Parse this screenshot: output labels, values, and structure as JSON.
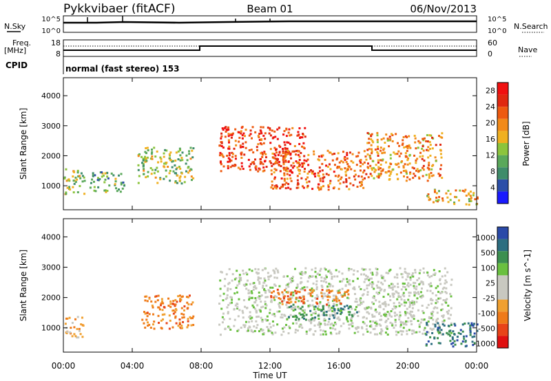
{
  "header": {
    "site": "Pykkvibaer (fitACF)",
    "beam": "Beam 01",
    "date": "06/Nov/2013"
  },
  "labels": {
    "nsky": "N.Sky",
    "nsearch": "N.Search",
    "freq_line1": "Freq.",
    "freq_line2": "[MHz]",
    "nave": "Nave",
    "cpid": "CPID",
    "cpid_value": "normal (fast stereo) 153"
  },
  "top_axes": {
    "noise_left_ticks": [
      "10^5",
      "10^0"
    ],
    "noise_right_ticks": [
      "10^5",
      "10^0"
    ],
    "freq_left_ticks": [
      "18",
      "8"
    ],
    "nave_right_ticks": [
      "60",
      "0"
    ]
  },
  "colors": {
    "power": [
      "#1a1aff",
      "#2c4fa8",
      "#3f8c6a",
      "#5aa85a",
      "#8cc43c",
      "#f0b020",
      "#f28a18",
      "#ee5a10",
      "#e02810",
      "#f01010"
    ],
    "velocity": [
      "#2a4aa8",
      "#2d6e80",
      "#3c8f50",
      "#6ac040",
      "#c8c8c0",
      "#c8c8c0",
      "#f0a030",
      "#ef7a18",
      "#e84418",
      "#e01010"
    ]
  },
  "chart_data": [
    {
      "type": "heatmap",
      "title": "Power",
      "ylabel": "Slant Range [km]",
      "ylim": [
        200,
        4600
      ],
      "y_ticks": [
        1000,
        2000,
        3000,
        4000
      ],
      "colorbar_label": "Power [dB]",
      "colorbar_ticks": [
        "4",
        "8",
        "12",
        "16",
        "20",
        "24",
        "28"
      ],
      "colorbar_range": [
        0,
        30
      ],
      "regions": [
        {
          "t0": 0.0,
          "t1": 1.2,
          "r0": 700,
          "r1": 1600,
          "value": 12
        },
        {
          "t0": 1.5,
          "t1": 3.5,
          "r0": 800,
          "r1": 1500,
          "value": 10
        },
        {
          "t0": 4.3,
          "t1": 7.5,
          "r0": 1100,
          "r1": 2300,
          "value": 14
        },
        {
          "t0": 9.0,
          "t1": 14.0,
          "r0": 1500,
          "r1": 3000,
          "value": 26
        },
        {
          "t0": 12.0,
          "t1": 17.5,
          "r0": 900,
          "r1": 2200,
          "value": 24
        },
        {
          "t0": 17.5,
          "t1": 22.0,
          "r0": 1200,
          "r1": 2800,
          "value": 20
        },
        {
          "t0": 21.0,
          "t1": 24.0,
          "r0": 400,
          "r1": 900,
          "value": 18
        }
      ]
    },
    {
      "type": "heatmap",
      "title": "Velocity",
      "ylabel": "Slant Range [km]",
      "xlabel": "Time UT",
      "ylim": [
        200,
        4600
      ],
      "y_ticks": [
        1000,
        2000,
        3000,
        4000
      ],
      "x_ticks": [
        "00:00",
        "04:00",
        "08:00",
        "12:00",
        "16:00",
        "20:00",
        "00:00"
      ],
      "colorbar_label": "Velocity [m s^-1]",
      "colorbar_ticks": [
        "1000",
        "500",
        "100",
        "25",
        "-25",
        "-100",
        "-500",
        "-1000"
      ],
      "regions": [
        {
          "t0": 0.0,
          "t1": 1.2,
          "r0": 700,
          "r1": 1400,
          "value": "-100"
        },
        {
          "t0": 4.5,
          "t1": 7.5,
          "r0": 1000,
          "r1": 2100,
          "value": "-500"
        },
        {
          "t0": 9.0,
          "t1": 22.5,
          "r0": 800,
          "r1": 3000,
          "value": "25"
        },
        {
          "t0": 12.0,
          "t1": 16.5,
          "r0": 1800,
          "r1": 2300,
          "value": "-500"
        },
        {
          "t0": 13.0,
          "t1": 17.0,
          "r0": 1300,
          "r1": 1800,
          "value": "100"
        },
        {
          "t0": 21.0,
          "t1": 24.0,
          "r0": 400,
          "r1": 1200,
          "value": "500"
        }
      ]
    }
  ]
}
